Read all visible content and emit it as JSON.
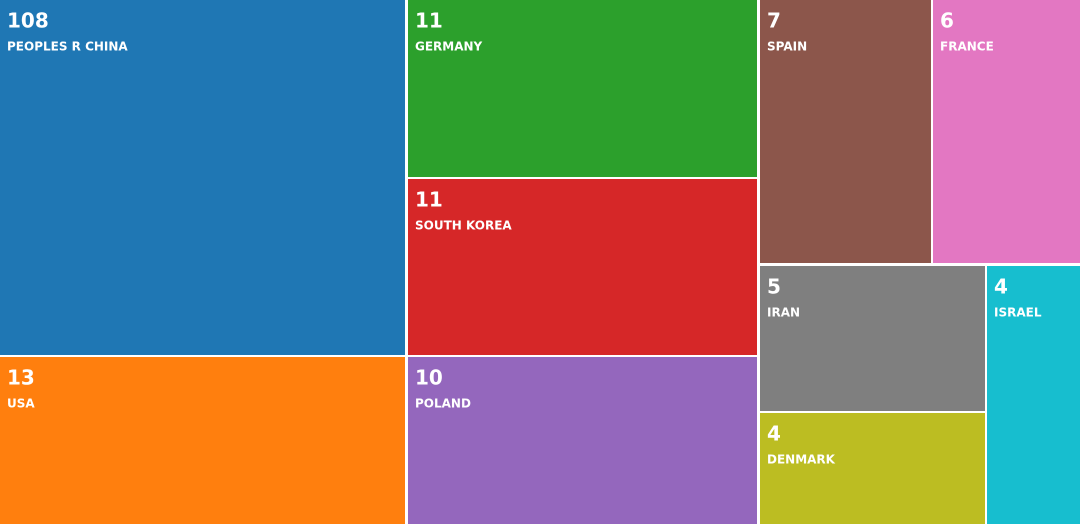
{
  "chart_data": {
    "type": "treemap",
    "categories": [
      "PEOPLES R CHINA",
      "USA",
      "GERMANY",
      "SOUTH KOREA",
      "POLAND",
      "SPAIN",
      "FRANCE",
      "IRAN",
      "DENMARK",
      "ISRAEL"
    ],
    "values": [
      108,
      13,
      11,
      11,
      10,
      7,
      6,
      5,
      4,
      4
    ],
    "colors": [
      "#1f77b4",
      "#ff7f0e",
      "#2ca02c",
      "#d62728",
      "#9467bd",
      "#8c564b",
      "#e377c2",
      "#7f7f7f",
      "#bcbd22",
      "#17becf"
    ]
  }
}
